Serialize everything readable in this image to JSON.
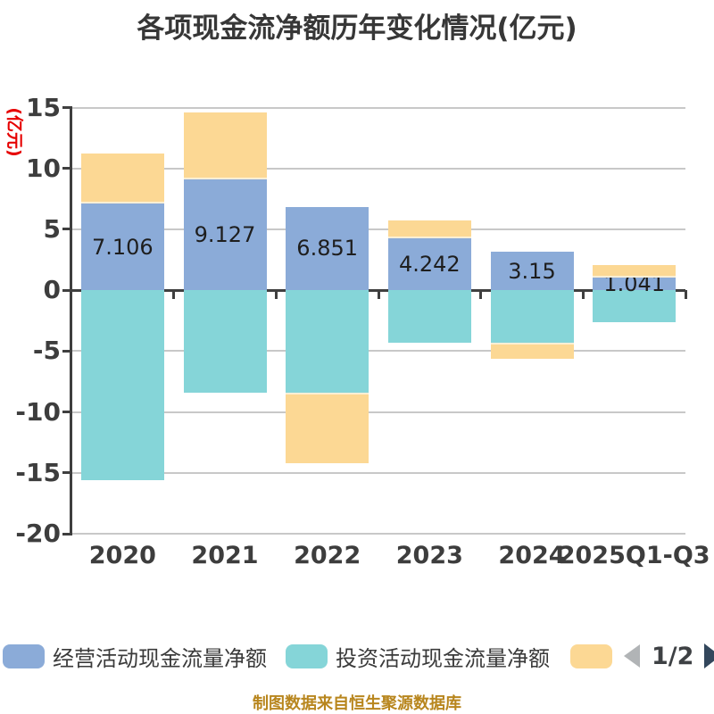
{
  "caption": "制图数据来自恒生聚源数据库",
  "legend": {
    "pager": {
      "text": "1/2",
      "prev_icon": "left-arrow",
      "next_icon": "right-arrow"
    }
  },
  "colors": {
    "title": "#373737",
    "axis_line": "#3f3f3f",
    "grid": "#c8c8c8",
    "axis_label": "#3d3d3d",
    "ylabel_red": "#e60000",
    "bar_label": "#1e1e1e",
    "caption_gold": "#b8861e",
    "pager_prev": "#b1b4b6",
    "pager_next": "#33475c"
  },
  "chart_data": {
    "type": "bar",
    "stacked": true,
    "title": "各项现金流净额历年变化情况(亿元)",
    "ylabel": "(亿元)",
    "xlabel": "",
    "categories": [
      "2020",
      "2021",
      "2022",
      "2023",
      "2024",
      "2025Q1-Q3"
    ],
    "series": [
      {
        "name": "经营活动现金流量净额",
        "color": "#8babd8",
        "values": [
          7.106,
          9.127,
          6.851,
          4.242,
          3.15,
          1.041
        ],
        "show_labels": true
      },
      {
        "name": "投资活动现金流量净额",
        "color": "#85d5d8",
        "values": [
          -15.6,
          -8.45,
          -8.4,
          -4.3,
          -4.3,
          -2.65
        ],
        "show_labels": false
      },
      {
        "name": "",
        "color": "#fcd894",
        "values": [
          4.15,
          5.47,
          -5.8,
          1.5,
          -1.3,
          1.05
        ],
        "show_labels": false
      }
    ],
    "bar_labels": [
      "7.106",
      "9.127",
      "6.851",
      "4.242",
      "3.15",
      "1.041"
    ],
    "yticks": [
      15,
      10,
      5,
      0,
      -5,
      -10,
      -15,
      -20
    ],
    "ylim": [
      -20,
      15
    ],
    "grid": true,
    "legend_position": "bottom"
  }
}
